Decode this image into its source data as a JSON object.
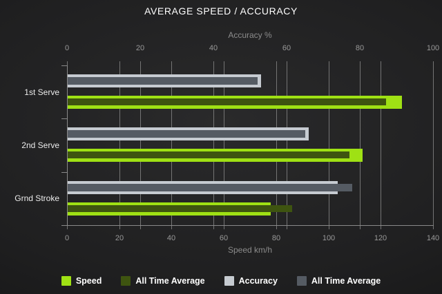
{
  "title": "AVERAGE SPEED / ACCURACY",
  "chart_data": {
    "type": "bar",
    "orientation": "horizontal",
    "categories": [
      "1st Serve",
      "2nd Serve",
      "Grnd Stroke"
    ],
    "series": [
      {
        "name": "Speed",
        "group": "speed",
        "role": "current",
        "color": "#9fe114",
        "values": [
          128,
          113,
          78
        ]
      },
      {
        "name": "All Time Average",
        "group": "speed",
        "role": "all_time_average",
        "color": "#3e5410",
        "values": [
          122,
          108,
          86
        ]
      },
      {
        "name": "Accuracy",
        "group": "accuracy",
        "role": "current",
        "color": "#c6cbd1",
        "values": [
          53,
          66,
          74
        ]
      },
      {
        "name": "All Time Average",
        "group": "accuracy",
        "role": "all_time_average",
        "color": "#555b63",
        "values": [
          52,
          65,
          78
        ]
      }
    ],
    "axes": {
      "top": {
        "title": "Accuracy %",
        "min": 0,
        "max": 100,
        "tick_interval": 20,
        "ticks": [
          0,
          20,
          40,
          60,
          80,
          100
        ]
      },
      "bottom": {
        "title": "Speed km/h",
        "min": 0,
        "max": 140,
        "tick_interval": 20,
        "ticks": [
          0,
          20,
          40,
          60,
          80,
          100,
          120,
          140
        ]
      }
    },
    "grid": true,
    "legend_position": "bottom"
  },
  "colors": {
    "background_center": "#2a2a2b",
    "background_edge": "#121212",
    "gridline": "#757575",
    "axis_line": "#8a8a8a",
    "tick_label": "#999999",
    "axis_title": "#8c8c8c",
    "category_label": "#ececec",
    "title": "#ffffff"
  }
}
